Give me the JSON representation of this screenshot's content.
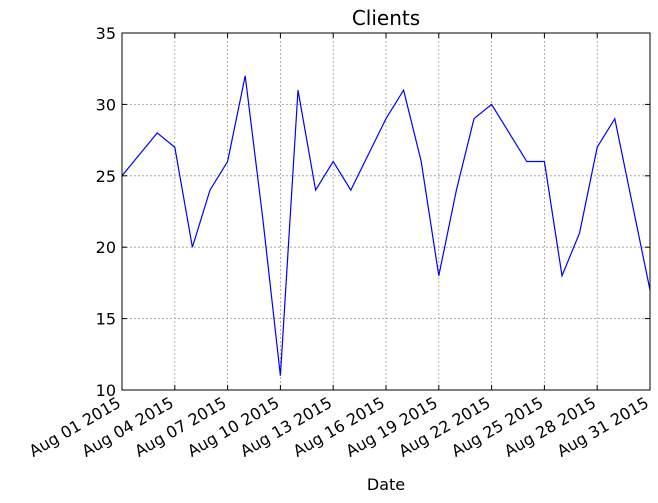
{
  "chart_data": {
    "type": "line",
    "title": "Clients",
    "xlabel": "Date",
    "ylabel": "",
    "x": [
      "2015-08-01",
      "2015-08-02",
      "2015-08-03",
      "2015-08-04",
      "2015-08-05",
      "2015-08-06",
      "2015-08-07",
      "2015-08-08",
      "2015-08-09",
      "2015-08-10",
      "2015-08-11",
      "2015-08-12",
      "2015-08-13",
      "2015-08-14",
      "2015-08-15",
      "2015-08-16",
      "2015-08-17",
      "2015-08-18",
      "2015-08-19",
      "2015-08-20",
      "2015-08-21",
      "2015-08-22",
      "2015-08-23",
      "2015-08-24",
      "2015-08-25",
      "2015-08-26",
      "2015-08-27",
      "2015-08-28",
      "2015-08-29",
      "2015-08-30",
      "2015-08-31"
    ],
    "series": [
      {
        "color": "#0000ff",
        "values": [
          25,
          26.5,
          28,
          27,
          20,
          24,
          26,
          32,
          22,
          11,
          31,
          24,
          26,
          24,
          26.5,
          29,
          31,
          26,
          18,
          24,
          29,
          30,
          28,
          26,
          26,
          18,
          21,
          27,
          29,
          23,
          17
        ]
      }
    ],
    "xlim": [
      "2015-08-01",
      "2015-08-31"
    ],
    "ylim": [
      10,
      35
    ],
    "x_ticks": [
      {
        "date": "2015-08-01",
        "label": "Aug 01 2015"
      },
      {
        "date": "2015-08-04",
        "label": "Aug 04 2015"
      },
      {
        "date": "2015-08-07",
        "label": "Aug 07 2015"
      },
      {
        "date": "2015-08-10",
        "label": "Aug 10 2015"
      },
      {
        "date": "2015-08-13",
        "label": "Aug 13 2015"
      },
      {
        "date": "2015-08-16",
        "label": "Aug 16 2015"
      },
      {
        "date": "2015-08-19",
        "label": "Aug 19 2015"
      },
      {
        "date": "2015-08-22",
        "label": "Aug 22 2015"
      },
      {
        "date": "2015-08-25",
        "label": "Aug 25 2015"
      },
      {
        "date": "2015-08-28",
        "label": "Aug 28 2015"
      },
      {
        "date": "2015-08-31",
        "label": "Aug 31 2015"
      }
    ],
    "y_ticks": [
      10,
      15,
      20,
      25,
      30,
      35
    ],
    "y_tick_labels": [
      "10",
      "15",
      "20",
      "25",
      "30",
      "35"
    ],
    "grid": true,
    "legend": "none"
  }
}
